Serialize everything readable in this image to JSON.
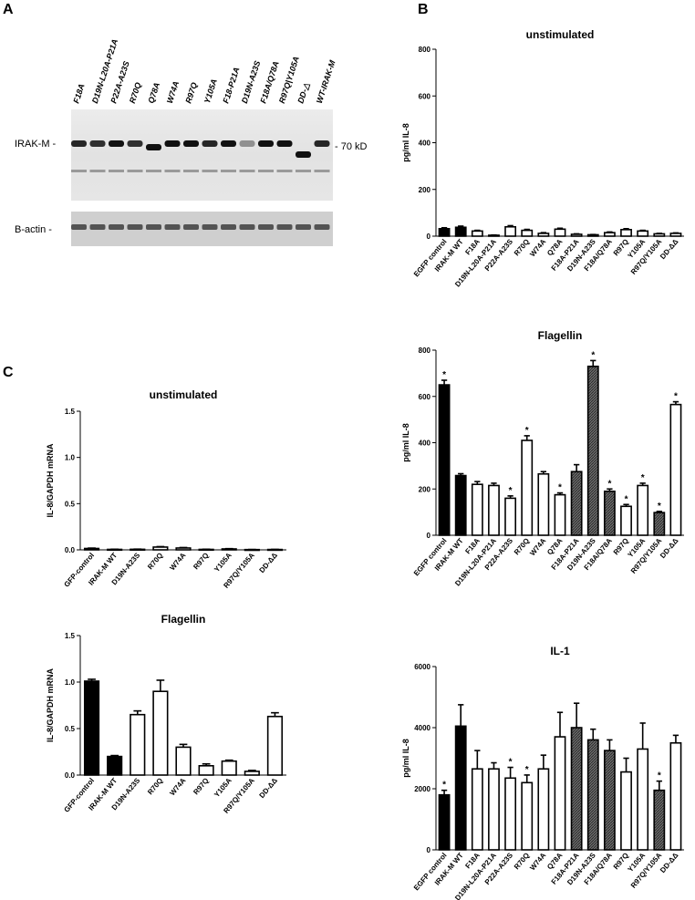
{
  "panels": {
    "a": "A",
    "b": "B",
    "c": "C"
  },
  "blot": {
    "lanes": [
      "F18A",
      "D19N-L20A-P21A",
      "P22A-A23S",
      "R70Q",
      "Q78A",
      "W74A",
      "R97Q",
      "Y105A",
      "F18-P21A",
      "D19N-A23S",
      "F18A/Q78A",
      "R97Q|Y105A",
      "DD-△",
      "WT-IRAK-M"
    ],
    "top_label": "IRAK-M -",
    "size_label": "- 70 kD",
    "bottom_label": "B-actin -"
  },
  "colors": {
    "black": "#000000",
    "white": "#ffffff",
    "hatched": "#5a5a5a"
  },
  "chart_data": [
    {
      "type": "bar",
      "title": "unstimulated",
      "ylabel": "pg/ml IL-8",
      "ylim": [
        0,
        800
      ],
      "yticks": [
        "0",
        "200",
        "400",
        "600",
        "800"
      ],
      "categories": [
        "EGFP control",
        "IRAK-M WT",
        "F18A",
        "D19N-L20A-P21A",
        "P22A-A23S",
        "R70Q",
        "W74A",
        "Q78A",
        "F18A-P21A",
        "D19N-A23S",
        "F18A/Q78A",
        "R97Q",
        "Y105A",
        "R97Q/Y105A",
        "DD-ΔΔ"
      ],
      "fills": [
        "black",
        "black",
        "white",
        "white",
        "white",
        "white",
        "white",
        "white",
        "white",
        "white",
        "white",
        "white",
        "white",
        "white",
        "white"
      ],
      "values": [
        32,
        38,
        22,
        4,
        40,
        25,
        12,
        30,
        8,
        6,
        15,
        28,
        22,
        10,
        12
      ],
      "errors": [
        4,
        5,
        3,
        1,
        5,
        4,
        3,
        4,
        2,
        1,
        3,
        4,
        3,
        2,
        2
      ],
      "significant": []
    },
    {
      "type": "bar",
      "title": "Flagellin",
      "ylabel": "pg/ml IL-8",
      "ylim": [
        0,
        800
      ],
      "yticks": [
        "0",
        "200",
        "400",
        "600",
        "800"
      ],
      "categories": [
        "EGFP control",
        "IRAK-M WT",
        "F18A",
        "D19N-L20A-P21A",
        "P22A-A23S",
        "R70Q",
        "W74A",
        "Q78A",
        "F18A-P21A",
        "D19N-A23S",
        "F18A/Q78A",
        "R97Q",
        "Y105A",
        "R97Q/Y105A",
        "DD-ΔΔ"
      ],
      "fills": [
        "black",
        "black",
        "white",
        "white",
        "white",
        "white",
        "white",
        "white",
        "hatched",
        "hatched",
        "hatched",
        "white",
        "white",
        "hatched",
        "white"
      ],
      "values": [
        650,
        258,
        220,
        215,
        160,
        410,
        265,
        175,
        275,
        730,
        190,
        125,
        215,
        98,
        565
      ],
      "errors": [
        20,
        8,
        12,
        10,
        10,
        20,
        10,
        8,
        30,
        25,
        10,
        8,
        10,
        5,
        12
      ],
      "significant": [
        0,
        4,
        5,
        7,
        9,
        10,
        11,
        12,
        13,
        14
      ]
    },
    {
      "type": "bar",
      "title": "IL-1",
      "ylabel": "pg/ml IL-8",
      "ylim": [
        0,
        6000
      ],
      "yticks": [
        "0",
        "2000",
        "4000",
        "6000"
      ],
      "categories": [
        "EGFP control",
        "IRAK-M WT",
        "F18A",
        "D19N-L20A-P21A",
        "P22A-A23S",
        "R70Q",
        "W74A",
        "Q78A",
        "F18A-P21A",
        "D19N-A23S",
        "F18A/Q78A",
        "R97Q",
        "Y105A",
        "R97Q/Y105A",
        "DD-ΔΔ"
      ],
      "fills": [
        "black",
        "black",
        "white",
        "white",
        "white",
        "white",
        "white",
        "white",
        "hatched",
        "hatched",
        "hatched",
        "white",
        "white",
        "hatched",
        "white"
      ],
      "values": [
        1800,
        4050,
        2650,
        2650,
        2350,
        2200,
        2650,
        3700,
        4000,
        3600,
        3250,
        2550,
        3300,
        1950,
        3500
      ],
      "errors": [
        150,
        700,
        600,
        200,
        350,
        250,
        450,
        800,
        800,
        350,
        350,
        450,
        850,
        300,
        250
      ],
      "significant": [
        0,
        4,
        5,
        13
      ]
    },
    {
      "type": "bar",
      "title": "unstimulated",
      "ylabel": "IL-8/GAPDH mRNA",
      "ylim": [
        0,
        1.5
      ],
      "yticks": [
        "0.0",
        "0.5",
        "1.0",
        "1.5"
      ],
      "categories": [
        "GFP-control",
        "IRAK-M WT",
        "D19N-A23S",
        "R70Q",
        "W74A",
        "R97Q",
        "Y105A",
        "R97Q/Y105A",
        "DD-ΔΔ"
      ],
      "fills": [
        "black",
        "black",
        "white",
        "white",
        "white",
        "white",
        "white",
        "white",
        "white"
      ],
      "values": [
        0.015,
        0.005,
        0.006,
        0.03,
        0.02,
        0.005,
        0.01,
        0.003,
        0.004
      ],
      "errors": [
        0.004,
        0.002,
        0.002,
        0.005,
        0.005,
        0.002,
        0.003,
        0.001,
        0.001
      ],
      "significant": []
    },
    {
      "type": "bar",
      "title": "Flagellin",
      "ylabel": "IL-8/GAPDH mRNA",
      "ylim": [
        0,
        1.5
      ],
      "yticks": [
        "0.0",
        "0.5",
        "1.0",
        "1.5"
      ],
      "categories": [
        "GFP-control",
        "IRAK-M WT",
        "D19N-A23S",
        "R70Q",
        "W74A",
        "R97Q",
        "Y105A",
        "R97Q/Y105A",
        "DD-ΔΔ"
      ],
      "fills": [
        "black",
        "black",
        "white",
        "white",
        "white",
        "white",
        "white",
        "white",
        "white"
      ],
      "values": [
        1.01,
        0.2,
        0.65,
        0.9,
        0.3,
        0.1,
        0.15,
        0.04,
        0.63
      ],
      "errors": [
        0.02,
        0.01,
        0.04,
        0.12,
        0.03,
        0.02,
        0.01,
        0.01,
        0.04
      ],
      "significant": []
    }
  ]
}
